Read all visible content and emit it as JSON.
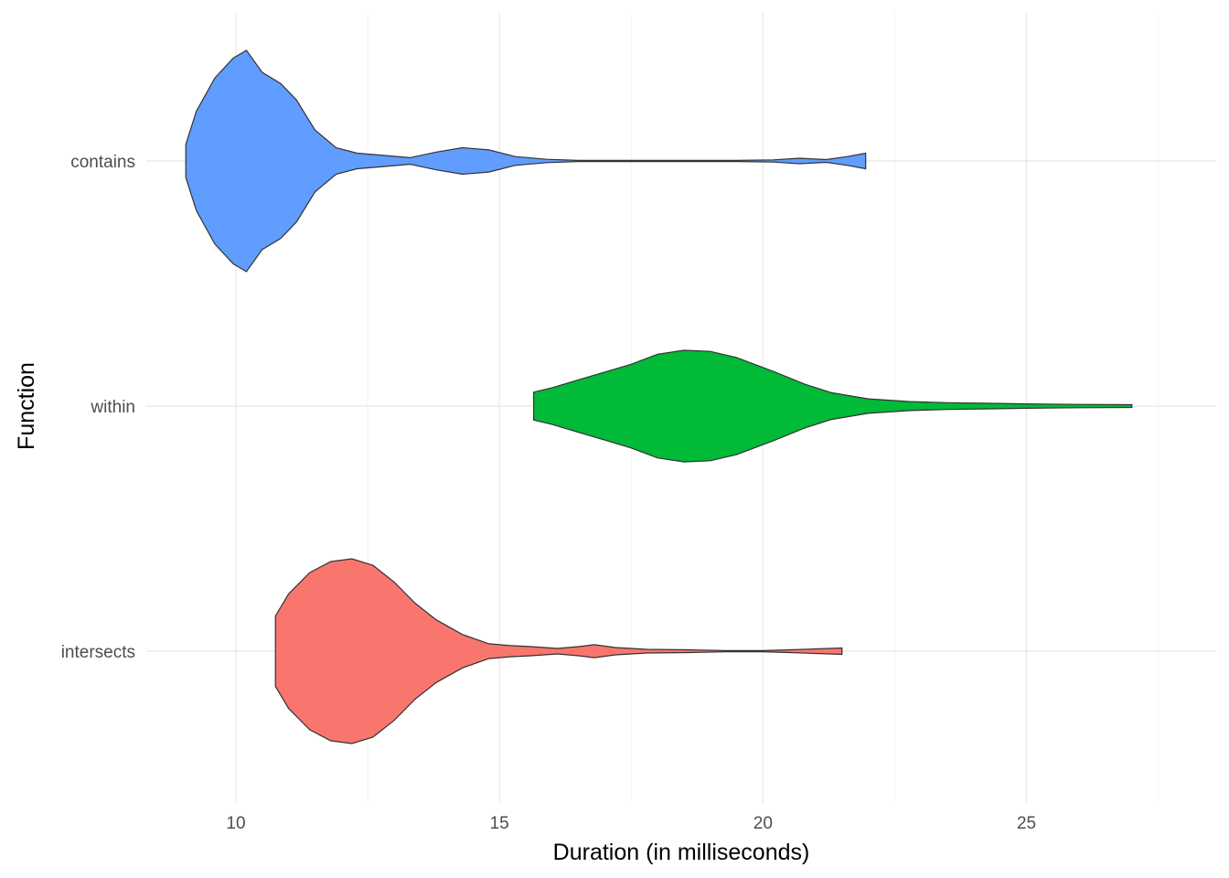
{
  "chart_data": {
    "type": "violin",
    "orientation": "horizontal",
    "xlabel": "Duration (in milliseconds)",
    "ylabel": "Function",
    "xlim": [
      8.3,
      28.6
    ],
    "xticks": [
      10,
      15,
      20,
      25
    ],
    "grid": true,
    "legend": "none",
    "categories": [
      "intersects",
      "within",
      "contains"
    ],
    "series": [
      {
        "category": "intersects",
        "color": "#F8766D",
        "range": [
          10.75,
          21.5
        ],
        "density_profile": [
          [
            10.75,
            0.38
          ],
          [
            11.0,
            0.62
          ],
          [
            11.4,
            0.85
          ],
          [
            11.8,
            0.97
          ],
          [
            12.2,
            1.0
          ],
          [
            12.6,
            0.93
          ],
          [
            13.0,
            0.75
          ],
          [
            13.4,
            0.52
          ],
          [
            13.8,
            0.34
          ],
          [
            14.3,
            0.18
          ],
          [
            14.8,
            0.08
          ],
          [
            15.2,
            0.06
          ],
          [
            15.6,
            0.05
          ],
          [
            16.1,
            0.03
          ],
          [
            16.5,
            0.05
          ],
          [
            16.8,
            0.07
          ],
          [
            17.2,
            0.04
          ],
          [
            17.8,
            0.02
          ],
          [
            18.6,
            0.015
          ],
          [
            19.3,
            0.005
          ],
          [
            20.0,
            0.005
          ],
          [
            20.5,
            0.015
          ],
          [
            21.0,
            0.025
          ],
          [
            21.5,
            0.035
          ]
        ]
      },
      {
        "category": "within",
        "color": "#00BA38",
        "range": [
          15.65,
          27.0
        ],
        "density_profile": [
          [
            15.65,
            0.25
          ],
          [
            16.0,
            0.33
          ],
          [
            16.5,
            0.47
          ],
          [
            17.0,
            0.61
          ],
          [
            17.5,
            0.75
          ],
          [
            18.0,
            0.93
          ],
          [
            18.5,
            1.0
          ],
          [
            19.0,
            0.98
          ],
          [
            19.5,
            0.87
          ],
          [
            20.2,
            0.62
          ],
          [
            20.8,
            0.39
          ],
          [
            21.3,
            0.24
          ],
          [
            22.0,
            0.13
          ],
          [
            22.8,
            0.08
          ],
          [
            23.5,
            0.06
          ],
          [
            24.2,
            0.05
          ],
          [
            25.0,
            0.04
          ],
          [
            26.0,
            0.03
          ],
          [
            27.0,
            0.025
          ]
        ]
      },
      {
        "category": "contains",
        "color": "#619CFF",
        "range": [
          9.05,
          21.95
        ],
        "density_profile": [
          [
            9.05,
            0.15
          ],
          [
            9.25,
            0.45
          ],
          [
            9.6,
            0.75
          ],
          [
            9.95,
            0.93
          ],
          [
            10.2,
            1.0
          ],
          [
            10.5,
            0.8
          ],
          [
            10.85,
            0.7
          ],
          [
            11.15,
            0.55
          ],
          [
            11.5,
            0.28
          ],
          [
            11.9,
            0.12
          ],
          [
            12.3,
            0.07
          ],
          [
            12.8,
            0.05
          ],
          [
            13.3,
            0.03
          ],
          [
            13.8,
            0.08
          ],
          [
            14.3,
            0.12
          ],
          [
            14.8,
            0.1
          ],
          [
            15.3,
            0.04
          ],
          [
            15.9,
            0.015
          ],
          [
            16.5,
            0.005
          ],
          [
            17.5,
            0.002
          ],
          [
            19.5,
            0.002
          ],
          [
            20.2,
            0.01
          ],
          [
            20.7,
            0.025
          ],
          [
            21.2,
            0.012
          ],
          [
            21.6,
            0.04
          ],
          [
            21.95,
            0.07
          ]
        ]
      }
    ]
  }
}
